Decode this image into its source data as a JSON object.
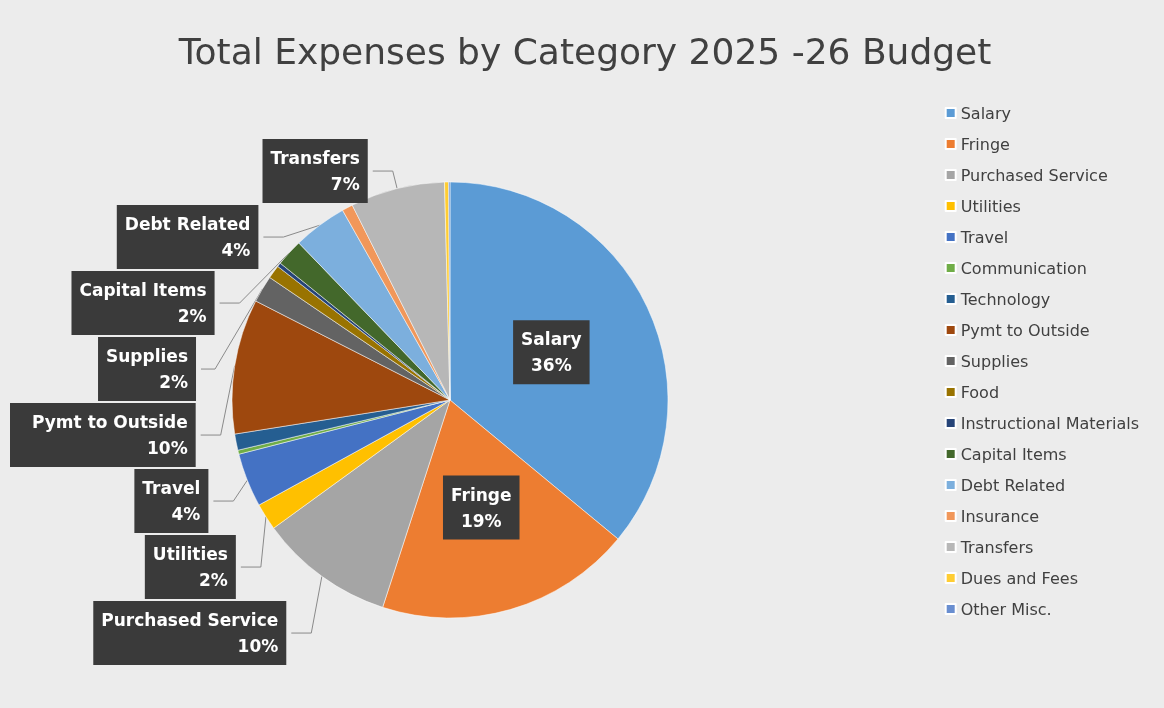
{
  "chart_data": {
    "type": "pie",
    "title": "Total Expenses by Category 2025 -26 Budget",
    "categories": [
      "Salary",
      "Fringe",
      "Purchased Service",
      "Utilities",
      "Travel",
      "Communication",
      "Technology",
      "Pymt to Outside",
      "Supplies",
      "Food",
      "Instructional Materials",
      "Capital Items",
      "Debt Related",
      "Insurance",
      "Transfers",
      "Dues and Fees",
      "Other Misc."
    ],
    "values": [
      36,
      19,
      10,
      2,
      4,
      0.3,
      1.2,
      10,
      2,
      1,
      0.3,
      2,
      4,
      0.8,
      7,
      0.3,
      0.1
    ],
    "value_labels": [
      "36%",
      "19%",
      "10%",
      "2%",
      "4%",
      null,
      null,
      "10%",
      "2%",
      null,
      null,
      "2%",
      "4%",
      null,
      "7%",
      null,
      null
    ],
    "colors": [
      "#5b9bd5",
      "#ed7d31",
      "#a5a5a5",
      "#ffc000",
      "#4472c4",
      "#70ad47",
      "#255e91",
      "#9e480e",
      "#636363",
      "#997300",
      "#264478",
      "#43682b",
      "#7cafdd",
      "#f1975a",
      "#b7b7b7",
      "#ffcd33",
      "#698ed0"
    ],
    "legend": "right"
  }
}
